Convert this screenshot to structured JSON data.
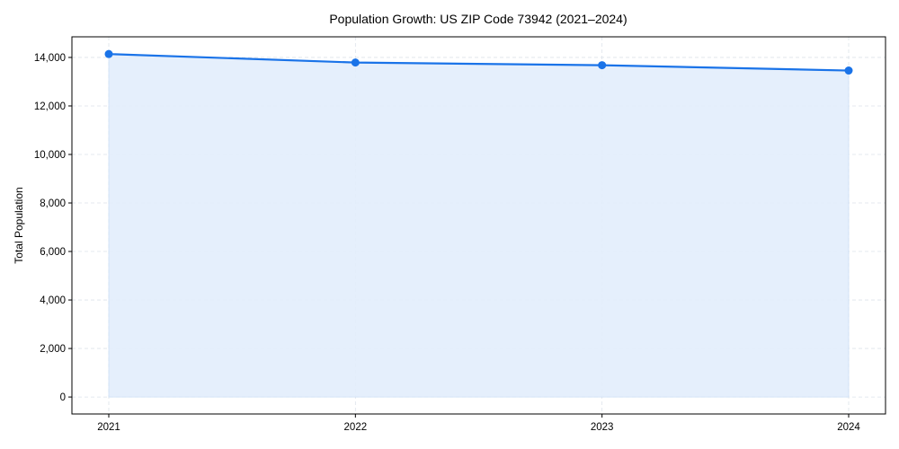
{
  "chart_data": {
    "type": "area",
    "title": "Population Growth: US ZIP Code 73942 (2021–2024)",
    "xlabel": "",
    "ylabel": "Total Population",
    "categories": [
      "2021",
      "2022",
      "2023",
      "2024"
    ],
    "series": [
      {
        "name": "Total Population",
        "values": [
          14140,
          13790,
          13680,
          13460
        ]
      }
    ],
    "ylim": [
      -700,
      14850
    ],
    "yticks": [
      0,
      2000,
      4000,
      6000,
      8000,
      10000,
      12000,
      14000
    ],
    "ytick_labels": [
      "0",
      "2,000",
      "4,000",
      "6,000",
      "8,000",
      "10,000",
      "12,000",
      "14,000"
    ],
    "grid": true,
    "line_color": "#1a73e8",
    "fill_color": "#e3eefc"
  }
}
